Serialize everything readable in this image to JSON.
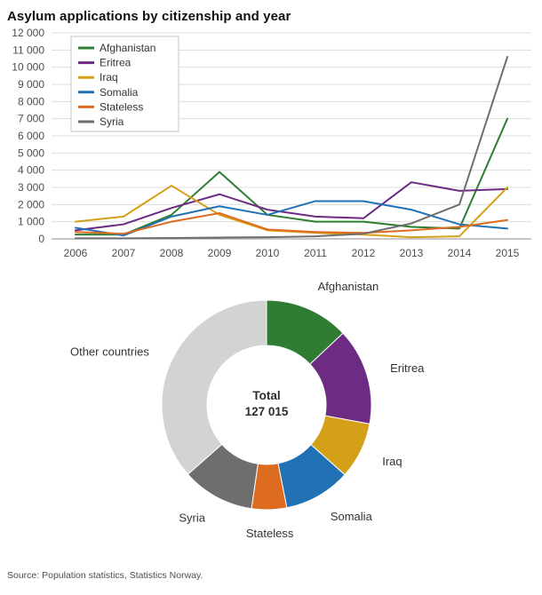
{
  "title": "Asylum applications by citizenship and year",
  "source": "Source: Population statistics, Statistics Norway.",
  "colors": {
    "grid": "#dcdcdc",
    "axis": "#8c8c8c",
    "text": "#4d4d4d"
  },
  "chart_data": [
    {
      "type": "line",
      "title": "Asylum applications by citizenship and year",
      "x_categories": [
        "2006",
        "2007",
        "2008",
        "2009",
        "2010",
        "2011",
        "2012",
        "2013",
        "2014",
        "2015"
      ],
      "ylim": [
        0,
        12000
      ],
      "ytick_step": 1000,
      "yticklabels": [
        "0",
        "1 000",
        "2 000",
        "3 000",
        "4 000",
        "5 000",
        "6 000",
        "7 000",
        "8 000",
        "9 000",
        "10 000",
        "11 000",
        "12 000"
      ],
      "grid": true,
      "legend_position": "top-left",
      "series": [
        {
          "name": "Afghanistan",
          "color": "#2e7d32",
          "values": [
            250,
            250,
            1400,
            3900,
            1400,
            1000,
            1000,
            700,
            600,
            7000
          ]
        },
        {
          "name": "Eritrea",
          "color": "#6e2b84",
          "values": [
            500,
            850,
            1800,
            2600,
            1700,
            1300,
            1200,
            3300,
            2800,
            2900
          ]
        },
        {
          "name": "Iraq",
          "color": "#d4a017",
          "values": [
            1000,
            1300,
            3100,
            1400,
            500,
            350,
            250,
            100,
            150,
            3000
          ]
        },
        {
          "name": "Somalia",
          "color": "#2171b5",
          "values": [
            650,
            200,
            1300,
            1900,
            1400,
            2200,
            2200,
            1700,
            850,
            600
          ]
        },
        {
          "name": "Stateless",
          "color": "#dd6b20",
          "values": [
            400,
            300,
            1000,
            1500,
            550,
            400,
            350,
            500,
            700,
            1100
          ]
        },
        {
          "name": "Syria",
          "color": "#6e6e6e",
          "values": [
            30,
            30,
            50,
            80,
            100,
            150,
            300,
            900,
            2000,
            10600
          ]
        }
      ]
    },
    {
      "type": "pie",
      "subtype": "donut",
      "center_label_line1": "Total",
      "center_label_line2": "127 015",
      "slices": [
        {
          "label": "Afghanistan",
          "percent": 13.0,
          "color": "#2e7d32"
        },
        {
          "label": "Eritrea",
          "percent": 14.9,
          "color": "#6e2b84"
        },
        {
          "label": "Iraq",
          "percent": 8.7,
          "color": "#d4a017"
        },
        {
          "label": "Somalia",
          "percent": 10.3,
          "color": "#2171b5"
        },
        {
          "label": "Stateless",
          "percent": 5.4,
          "color": "#dd6b20"
        },
        {
          "label": "Syria",
          "percent": 11.2,
          "color": "#6e6e6e"
        },
        {
          "label": "Other countries",
          "percent": 36.5,
          "color": "#d3d3d3"
        }
      ]
    }
  ]
}
